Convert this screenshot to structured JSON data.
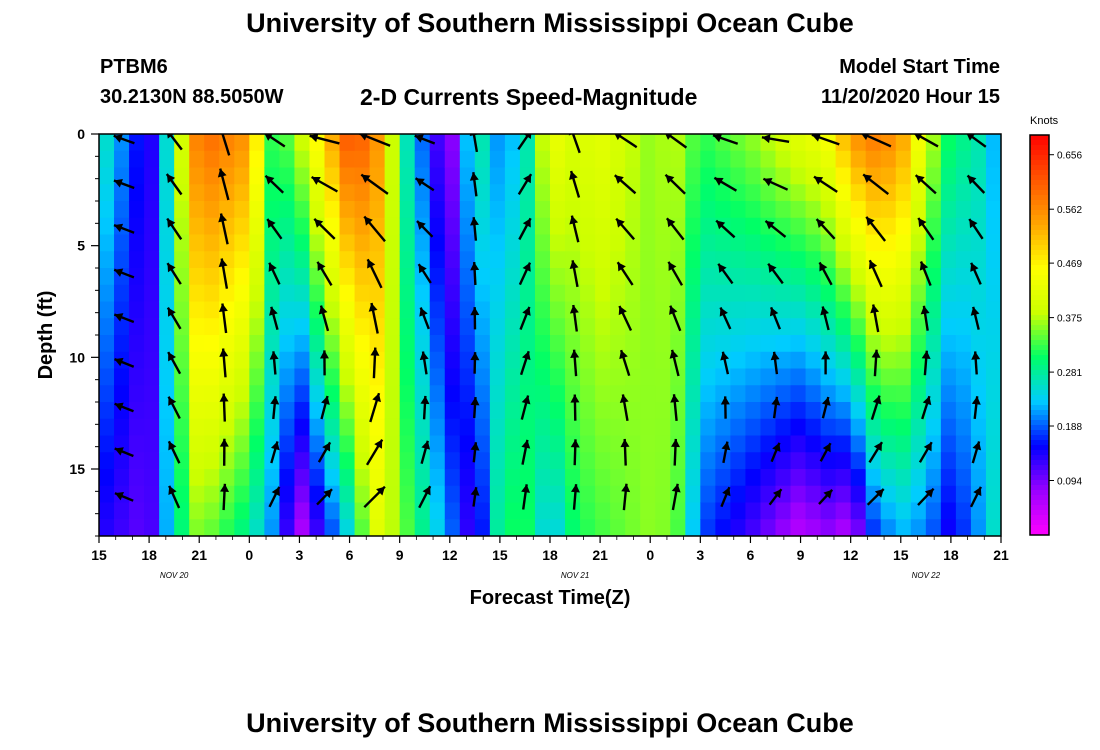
{
  "page": {
    "title_top": "University of Southern Mississippi Ocean Cube",
    "title_bottom": "University of Southern Mississippi Ocean Cube",
    "station_id": "PTBM6",
    "station_coords": "30.2130N 88.5050W",
    "model_start_label": "Model Start Time",
    "model_start_value": "11/20/2020 Hour 15"
  },
  "chart_data": {
    "type": "heatmap",
    "title": "2-D Currents Speed-Magnitude",
    "xlabel": "Forecast Time(Z)",
    "ylabel": "Depth (ft)",
    "x_tick_labels": [
      "15",
      "18",
      "21",
      "0",
      "3",
      "6",
      "9",
      "12",
      "15",
      "18",
      "21",
      "0",
      "3",
      "6",
      "9",
      "12",
      "15",
      "18",
      "21"
    ],
    "x_date_labels": [
      {
        "label": "NOV  20",
        "tick_index": 1.5
      },
      {
        "label": "NOV  21",
        "tick_index": 9.5
      },
      {
        "label": "NOV  22",
        "tick_index": 16.5
      }
    ],
    "x_range_hours": [
      0,
      54
    ],
    "y_ticks": [
      0,
      5,
      10,
      15
    ],
    "ylim": [
      0,
      18
    ],
    "y_inverted": true,
    "colorbar": {
      "unit": "Knots",
      "tick_values": [
        0.094,
        0.188,
        0.281,
        0.375,
        0.469,
        0.562,
        0.656
      ],
      "tick_labels": [
        "0.094",
        "0.188",
        "0.281",
        "0.375",
        "0.469",
        "0.562",
        "0.656"
      ],
      "range": [
        0.0,
        0.69
      ],
      "colors": [
        "#ff00ff",
        "#9900ff",
        "#0000ff",
        "#00ccff",
        "#00ff66",
        "#ccff00",
        "#ffff00",
        "#ffa500",
        "#ff5500",
        "#ff0000"
      ]
    },
    "speed_profile": {
      "hours": [
        0,
        3,
        4.5,
        6,
        9,
        10.5,
        12,
        15,
        16.5,
        18,
        21,
        22.5,
        24,
        25.5,
        27,
        28.5,
        30,
        33,
        34.5,
        36,
        39,
        42,
        43.5,
        45,
        46.5,
        48,
        49.5,
        51,
        52.5,
        54
      ],
      "surface_knots": [
        0.28,
        0.12,
        0.31,
        0.6,
        0.55,
        0.3,
        0.38,
        0.62,
        0.58,
        0.3,
        0.06,
        0.3,
        0.2,
        0.25,
        0.44,
        0.4,
        0.42,
        0.36,
        0.38,
        0.32,
        0.36,
        0.42,
        0.44,
        0.55,
        0.58,
        0.55,
        0.4,
        0.3,
        0.28,
        0.2
      ],
      "bottom_knots": [
        0.14,
        0.1,
        0.27,
        0.36,
        0.28,
        0.2,
        0.05,
        0.25,
        0.42,
        0.36,
        0.2,
        0.1,
        0.3,
        0.32,
        0.22,
        0.31,
        0.33,
        0.36,
        0.35,
        0.18,
        0.12,
        0.05,
        0.08,
        0.05,
        0.18,
        0.22,
        0.2,
        0.14,
        0.2,
        0.28
      ]
    },
    "direction_profile_deg_ccw_from_east": {
      "hours": [
        0,
        3,
        6,
        9,
        12,
        15,
        18,
        21,
        24,
        27,
        30,
        33,
        36,
        39,
        42,
        45,
        48,
        51,
        54
      ],
      "surface": [
        160,
        160,
        95,
        120,
        175,
        160,
        160,
        160,
        40,
        70,
        150,
        145,
        145,
        180,
        165,
        160,
        155,
        150,
        140
      ],
      "bottom": [
        180,
        135,
        90,
        80,
        30,
        35,
        30,
        75,
        85,
        85,
        80,
        75,
        70,
        45,
        35,
        35,
        30,
        40,
        70
      ]
    }
  }
}
